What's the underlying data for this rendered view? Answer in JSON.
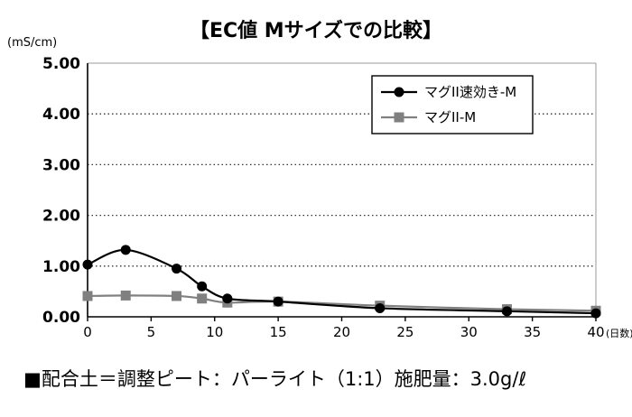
{
  "chart_data": {
    "type": "line",
    "title": "【EC値 Mサイズでの比較】",
    "ylabel": "(mS/cm)",
    "xlabel": "(日数)",
    "xlim": [
      0,
      40
    ],
    "ylim": [
      0,
      5
    ],
    "x_ticks": [
      "0",
      "5",
      "10",
      "15",
      "20",
      "25",
      "30",
      "35",
      "40"
    ],
    "y_ticks": [
      "0.00",
      "1.00",
      "2.00",
      "3.00",
      "4.00",
      "5.00"
    ],
    "grid": "horizontal dotted",
    "legend_position": "top-right",
    "series": [
      {
        "name": "マグII速効き-M",
        "color": "#000000",
        "marker": "circle",
        "x": [
          0,
          3,
          7,
          9,
          11,
          15,
          23,
          33,
          40
        ],
        "values": [
          1.03,
          1.32,
          0.95,
          0.6,
          0.36,
          0.3,
          0.17,
          0.11,
          0.07
        ]
      },
      {
        "name": "マグII-M",
        "color": "#808080",
        "marker": "square",
        "x": [
          0,
          3,
          7,
          9,
          11,
          15,
          23,
          33,
          40
        ],
        "values": [
          0.41,
          0.42,
          0.41,
          0.36,
          0.28,
          0.3,
          0.22,
          0.15,
          0.12
        ]
      }
    ]
  },
  "footnote": "■配合土＝調整ピート：パーライト（1:1）施肥量：3.0g/ℓ"
}
